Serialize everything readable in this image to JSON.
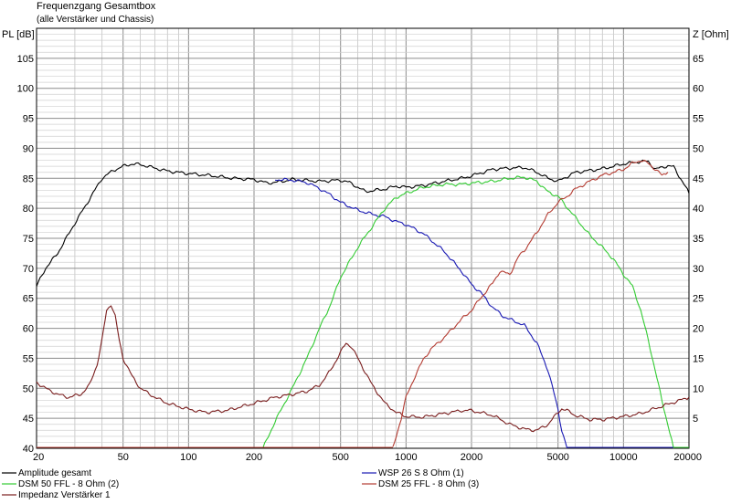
{
  "chart_data": {
    "type": "line",
    "title": "Frequenzgang Gesamtbox",
    "subtitle": "(alle Verstärker und Chassis)",
    "y_left_label": "PL [dB]",
    "y_right_label": "Z [Ohm]",
    "x_scale": "log",
    "xlim": [
      20,
      20000
    ],
    "ylim_left": [
      40,
      110
    ],
    "ylim_right": [
      0,
      70
    ],
    "grid": true,
    "x_tick_labels": [
      "20",
      "50",
      "100",
      "200",
      "500",
      "1000",
      "2000",
      "5000",
      "10000",
      "20000"
    ],
    "y_left_tick_labels": [
      "40",
      "45",
      "50",
      "55",
      "60",
      "65",
      "70",
      "75",
      "80",
      "85",
      "90",
      "95",
      "100",
      "105"
    ],
    "y_right_tick_labels": [
      "5",
      "10",
      "15",
      "20",
      "25",
      "30",
      "35",
      "40",
      "45",
      "50",
      "55",
      "60",
      "65"
    ],
    "legend_position": "bottom",
    "series": [
      {
        "name": "Amplitude gesamt",
        "color": "#000000",
        "axis": "left",
        "points": [
          [
            20,
            67
          ],
          [
            22,
            70
          ],
          [
            25,
            72.5
          ],
          [
            30,
            77.5
          ],
          [
            35,
            81.5
          ],
          [
            40,
            85
          ],
          [
            45,
            86.3
          ],
          [
            50,
            87
          ],
          [
            55,
            87.4
          ],
          [
            60,
            87.3
          ],
          [
            70,
            86.7
          ],
          [
            80,
            86.2
          ],
          [
            100,
            85.8
          ],
          [
            130,
            85.4
          ],
          [
            160,
            85
          ],
          [
            200,
            84.8
          ],
          [
            230,
            84.2
          ],
          [
            260,
            84.4
          ],
          [
            300,
            84.8
          ],
          [
            400,
            84.5
          ],
          [
            500,
            84.7
          ],
          [
            550,
            84.3
          ],
          [
            600,
            83.5
          ],
          [
            650,
            82.8
          ],
          [
            800,
            83.2
          ],
          [
            900,
            83.7
          ],
          [
            1000,
            83.5
          ],
          [
            1200,
            83.8
          ],
          [
            1500,
            84.5
          ],
          [
            1800,
            85
          ],
          [
            2000,
            85.4
          ],
          [
            2500,
            86.5
          ],
          [
            3000,
            86.7
          ],
          [
            3500,
            86.8
          ],
          [
            4000,
            86
          ],
          [
            4500,
            85
          ],
          [
            5000,
            84.5
          ],
          [
            6000,
            86
          ],
          [
            7000,
            86.3
          ],
          [
            8000,
            86.6
          ],
          [
            9000,
            87
          ],
          [
            10000,
            87.4
          ],
          [
            12000,
            87.8
          ],
          [
            13000,
            87.8
          ],
          [
            14000,
            86.5
          ],
          [
            16000,
            87.1
          ],
          [
            17000,
            86.9
          ],
          [
            19000,
            84
          ],
          [
            20000,
            82.5
          ]
        ]
      },
      {
        "name": "WSP 26 S 8 Ohm (1)",
        "color": "#1a1ab4",
        "axis": "left",
        "points": [
          [
            250,
            84.8
          ],
          [
            300,
            84.7
          ],
          [
            350,
            84.3
          ],
          [
            400,
            83.3
          ],
          [
            450,
            82.2
          ],
          [
            500,
            81
          ],
          [
            550,
            80.3
          ],
          [
            600,
            79.7
          ],
          [
            700,
            79
          ],
          [
            800,
            78.6
          ],
          [
            900,
            77.8
          ],
          [
            1000,
            77.3
          ],
          [
            1200,
            75.8
          ],
          [
            1500,
            72.8
          ],
          [
            1800,
            69.5
          ],
          [
            2000,
            67.3
          ],
          [
            2200,
            66
          ],
          [
            2500,
            63.5
          ],
          [
            2800,
            62
          ],
          [
            3000,
            61.5
          ],
          [
            3500,
            60.5
          ],
          [
            4000,
            57.5
          ],
          [
            4500,
            53
          ],
          [
            5000,
            46.5
          ],
          [
            5200,
            43
          ],
          [
            5500,
            40
          ]
        ]
      },
      {
        "name": "DSM 50 FFL - 8 Ohm (2)",
        "color": "#33cc33",
        "axis": "left",
        "points": [
          [
            220,
            40
          ],
          [
            250,
            44.5
          ],
          [
            300,
            50
          ],
          [
            350,
            55
          ],
          [
            400,
            60
          ],
          [
            450,
            64
          ],
          [
            500,
            68.5
          ],
          [
            600,
            73.5
          ],
          [
            700,
            77
          ],
          [
            800,
            80
          ],
          [
            900,
            81.8
          ],
          [
            1000,
            82.5
          ],
          [
            1200,
            83.5
          ],
          [
            1500,
            84
          ],
          [
            1800,
            84
          ],
          [
            2000,
            84.2
          ],
          [
            2500,
            84.5
          ],
          [
            3000,
            85
          ],
          [
            3500,
            85.2
          ],
          [
            4000,
            84.5
          ],
          [
            4500,
            82.7
          ],
          [
            5000,
            82
          ],
          [
            6000,
            78.5
          ],
          [
            7000,
            75.5
          ],
          [
            8000,
            73.5
          ],
          [
            9000,
            71.5
          ],
          [
            10000,
            69
          ],
          [
            11000,
            67
          ],
          [
            12000,
            63
          ],
          [
            13000,
            58
          ],
          [
            14000,
            53
          ],
          [
            15000,
            48
          ],
          [
            16000,
            44
          ],
          [
            17000,
            40
          ]
        ]
      },
      {
        "name": "Impedanz Verstärker 1",
        "color": "#7a1e1e",
        "axis": "right",
        "points": [
          [
            20,
            11
          ],
          [
            22,
            10
          ],
          [
            25,
            9
          ],
          [
            28,
            8.5
          ],
          [
            32,
            9
          ],
          [
            35,
            10.5
          ],
          [
            38,
            14
          ],
          [
            40,
            18
          ],
          [
            42,
            23
          ],
          [
            44,
            24
          ],
          [
            46,
            22
          ],
          [
            48,
            18
          ],
          [
            50,
            15
          ],
          [
            55,
            12
          ],
          [
            60,
            10
          ],
          [
            70,
            8.5
          ],
          [
            80,
            7.5
          ],
          [
            100,
            6.5
          ],
          [
            120,
            6
          ],
          [
            150,
            6.3
          ],
          [
            200,
            7.5
          ],
          [
            250,
            8.5
          ],
          [
            300,
            9
          ],
          [
            350,
            9.5
          ],
          [
            400,
            10.5
          ],
          [
            450,
            13
          ],
          [
            500,
            16
          ],
          [
            530,
            17.5
          ],
          [
            560,
            17
          ],
          [
            600,
            15
          ],
          [
            700,
            10.5
          ],
          [
            800,
            7.5
          ],
          [
            900,
            6
          ],
          [
            1000,
            5.3
          ],
          [
            1200,
            5.2
          ],
          [
            1500,
            5.8
          ],
          [
            1800,
            6.3
          ],
          [
            2000,
            6.3
          ],
          [
            2500,
            5.5
          ],
          [
            3000,
            4
          ],
          [
            3500,
            3.2
          ],
          [
            4000,
            3
          ],
          [
            4500,
            4
          ],
          [
            5000,
            6
          ],
          [
            5200,
            6.6
          ],
          [
            5500,
            6.3
          ],
          [
            6000,
            5.5
          ],
          [
            7000,
            4.8
          ],
          [
            8000,
            4.8
          ],
          [
            10000,
            5.3
          ],
          [
            12000,
            5.8
          ],
          [
            15000,
            7
          ],
          [
            20000,
            8.5
          ]
        ]
      },
      {
        "name": "DSM 25 FFL - 8 Ohm (3)",
        "color": "#b43c32",
        "axis": "left",
        "points": [
          [
            870,
            40
          ],
          [
            950,
            45
          ],
          [
            1000,
            48.5
          ],
          [
            1100,
            52
          ],
          [
            1200,
            54.8
          ],
          [
            1300,
            56.5
          ],
          [
            1500,
            58.5
          ],
          [
            1800,
            61.5
          ],
          [
            2000,
            63
          ],
          [
            2200,
            65
          ],
          [
            2500,
            67.5
          ],
          [
            2700,
            69.5
          ],
          [
            3000,
            69
          ],
          [
            3300,
            72
          ],
          [
            3500,
            73
          ],
          [
            4000,
            76
          ],
          [
            4500,
            79
          ],
          [
            5000,
            81
          ],
          [
            5500,
            82
          ],
          [
            6000,
            83.2
          ],
          [
            7000,
            84.5
          ],
          [
            8000,
            85.5
          ],
          [
            9000,
            86
          ],
          [
            10000,
            86.5
          ],
          [
            11000,
            87.5
          ],
          [
            12000,
            88
          ],
          [
            13000,
            87.5
          ],
          [
            14000,
            86.5
          ],
          [
            15000,
            85.5
          ],
          [
            16000,
            86
          ]
        ]
      }
    ]
  }
}
